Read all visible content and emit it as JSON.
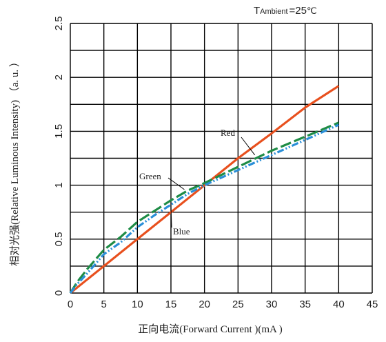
{
  "chart_data": {
    "type": "line",
    "title": "",
    "ambient": {
      "t": "T",
      "sub": "Ambient",
      "value": "=25",
      "unit": "℃"
    },
    "xlabel": "正向电流(Forward  Current )(mA )",
    "ylabel": "相对光强(Relative Luminous  Intensity) （a. u. ）",
    "xlim": [
      0,
      45
    ],
    "ylim": [
      0,
      2.5
    ],
    "x_ticks": [
      "0",
      "5",
      "10",
      "15",
      "20",
      "25",
      "30",
      "35",
      "40",
      "45"
    ],
    "y_ticks": [
      "0",
      "0.5",
      "1",
      "1.5",
      "2",
      "2.5"
    ],
    "grid": true,
    "series": [
      {
        "name": "Red",
        "color": "#e8501e",
        "dash": "none",
        "x": [
          0,
          5,
          10,
          15,
          20,
          25,
          30,
          35,
          40
        ],
        "y": [
          0,
          0.25,
          0.5,
          0.75,
          1.0,
          1.25,
          1.48,
          1.72,
          1.92
        ]
      },
      {
        "name": "Green",
        "color": "#1e8c46",
        "dash": "16 5",
        "x": [
          0,
          1,
          2.5,
          5,
          7.5,
          10,
          12.5,
          15,
          17.5,
          20,
          25,
          30,
          35,
          40
        ],
        "y": [
          0,
          0.1,
          0.22,
          0.4,
          0.52,
          0.66,
          0.76,
          0.86,
          0.95,
          1.02,
          1.17,
          1.32,
          1.45,
          1.58
        ]
      },
      {
        "name": "Blue",
        "color": "#2a8fd8",
        "dash": "10 3 2 3 2 3",
        "x": [
          0,
          1,
          2.5,
          5,
          7.5,
          10,
          12.5,
          15,
          17.5,
          20,
          25,
          30,
          35,
          40
        ],
        "y": [
          0,
          0.08,
          0.18,
          0.36,
          0.47,
          0.61,
          0.72,
          0.82,
          0.92,
          1.0,
          1.14,
          1.28,
          1.42,
          1.56
        ]
      }
    ],
    "annotations": [
      {
        "text": "Red",
        "series": "Red",
        "at": [
          27.5,
          1.28
        ]
      },
      {
        "text": "Green",
        "series": "Green",
        "at": [
          17,
          0.96
        ]
      },
      {
        "text": "Blue",
        "series": "Blue",
        "at": [
          15,
          0.8
        ]
      }
    ]
  }
}
